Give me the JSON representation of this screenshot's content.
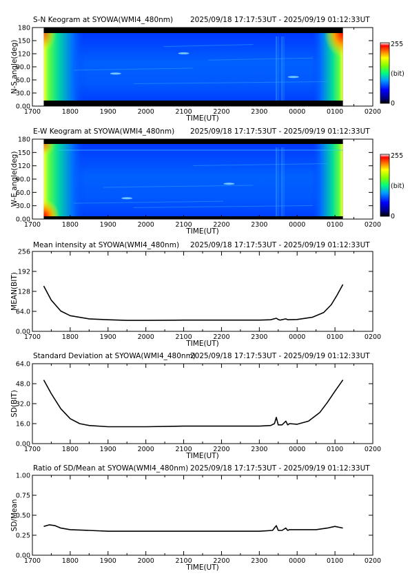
{
  "chart_data": [
    {
      "type": "heatmap",
      "title": "S-N Keogram at SYOWA(WMI4_480nm)",
      "time_range": "2025/09/18 17:17:53UT - 2025/09/19 01:12:33UT",
      "xlabel": "TIME(UT)",
      "ylabel": "N-S angle(deg)",
      "x_ticks": [
        "1700",
        "1800",
        "1900",
        "2000",
        "2100",
        "2200",
        "2300",
        "0000",
        "0100",
        "0200"
      ],
      "y_ticks": [
        "0.00",
        "30.0",
        "60.0",
        "90.0",
        "120",
        "150",
        "180"
      ],
      "ylim": [
        0,
        180
      ],
      "data_extent_hours": [
        17.3,
        25.21
      ],
      "colorbar": {
        "max": "255",
        "unit": "(bit)",
        "min": "0"
      }
    },
    {
      "type": "heatmap",
      "title": "E-W Keogram at SYOWA(WMI4_480nm)",
      "time_range": "2025/09/18 17:17:53UT - 2025/09/19 01:12:33UT",
      "xlabel": "TIME(UT)",
      "ylabel": "W-E angle(deg)",
      "x_ticks": [
        "1700",
        "1800",
        "1900",
        "2000",
        "2100",
        "2200",
        "2300",
        "0000",
        "0100",
        "0200"
      ],
      "y_ticks": [
        "0.00",
        "30.0",
        "60.0",
        "90.0",
        "120",
        "150",
        "180"
      ],
      "ylim": [
        0,
        180
      ],
      "data_extent_hours": [
        17.3,
        25.21
      ],
      "colorbar": {
        "max": "255",
        "unit": "(bit)",
        "min": "0"
      }
    },
    {
      "type": "line",
      "title": "Mean intensity at SYOWA(WMI4_480nm)",
      "time_range": "2025/09/18 17:17:53UT - 2025/09/19 01:12:33UT",
      "xlabel": "TIME(UT)",
      "ylabel": "MEAN(BIT)",
      "x_ticks": [
        "1700",
        "1800",
        "1900",
        "2000",
        "2100",
        "2200",
        "2300",
        "0000",
        "0100",
        "0200"
      ],
      "y_ticks": [
        "0.00",
        "64.0",
        "128",
        "192",
        "256"
      ],
      "ylim": [
        0,
        256
      ],
      "x": [
        17.3,
        17.5,
        17.75,
        18.0,
        18.5,
        19.0,
        19.5,
        20.0,
        21.0,
        22.0,
        23.0,
        23.3,
        23.45,
        23.5,
        23.55,
        23.7,
        23.75,
        24.0,
        24.4,
        24.7,
        24.9,
        25.05,
        25.21
      ],
      "y": [
        145,
        100,
        65,
        50,
        40,
        37,
        35,
        35,
        36,
        36,
        36,
        37,
        42,
        38,
        36,
        40,
        37,
        38,
        45,
        60,
        85,
        115,
        150
      ]
    },
    {
      "type": "line",
      "title": "Standard Deviation at SYOWA(WMI4_480nm)",
      "time_range": "2025/09/18 17:17:53UT - 2025/09/19 01:12:33UT",
      "xlabel": "TIME(UT)",
      "ylabel": "SD(BIT)",
      "x_ticks": [
        "1700",
        "1800",
        "1900",
        "2000",
        "2100",
        "2200",
        "2300",
        "0000",
        "0100",
        "0200"
      ],
      "y_ticks": [
        "0.00",
        "16.0",
        "32.0",
        "48.0",
        "64.0"
      ],
      "ylim": [
        0,
        64
      ],
      "x": [
        17.3,
        17.5,
        17.75,
        18.0,
        18.25,
        18.5,
        19.0,
        19.5,
        20.0,
        21.0,
        22.0,
        23.0,
        23.3,
        23.4,
        23.45,
        23.5,
        23.6,
        23.7,
        23.75,
        23.8,
        24.0,
        24.3,
        24.6,
        24.8,
        25.0,
        25.21
      ],
      "y": [
        51,
        40,
        28,
        20,
        16,
        14.5,
        13.5,
        13.5,
        13.5,
        14,
        14,
        14,
        14.5,
        16,
        21,
        15,
        15,
        18,
        15,
        16,
        15.5,
        18,
        25,
        33,
        42,
        51
      ]
    },
    {
      "type": "line",
      "title": "Ratio of SD/Mean at SYOWA(WMI4_480nm)",
      "time_range": "2025/09/18 17:17:53UT - 2025/09/19 01:12:33UT",
      "xlabel": "TIME(UT)",
      "ylabel": "SD/Mean",
      "x_ticks": [
        "1700",
        "1800",
        "1900",
        "2000",
        "2100",
        "2200",
        "2300",
        "0000",
        "0100",
        "0200"
      ],
      "y_ticks": [
        "0.00",
        "0.25",
        "0.50",
        "0.75",
        "1.00"
      ],
      "ylim": [
        0,
        1
      ],
      "x": [
        17.3,
        17.45,
        17.6,
        17.75,
        18.0,
        18.5,
        19.0,
        20.0,
        21.0,
        22.0,
        23.0,
        23.35,
        23.45,
        23.5,
        23.6,
        23.7,
        23.75,
        23.8,
        24.0,
        24.5,
        24.8,
        25.0,
        25.21
      ],
      "y": [
        0.36,
        0.38,
        0.37,
        0.34,
        0.32,
        0.31,
        0.3,
        0.3,
        0.3,
        0.3,
        0.3,
        0.31,
        0.37,
        0.31,
        0.31,
        0.34,
        0.31,
        0.32,
        0.32,
        0.32,
        0.34,
        0.36,
        0.34
      ]
    }
  ]
}
